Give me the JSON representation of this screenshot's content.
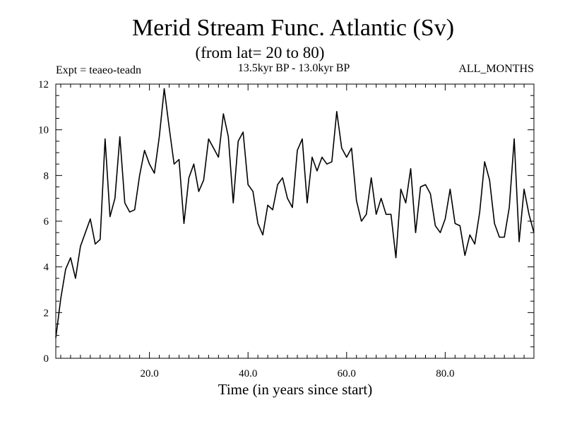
{
  "chart_data": {
    "type": "line",
    "title": "Merid Stream Func. Atlantic (Sv)",
    "subtitle": "(from lat= 20 to 80)",
    "experiment": "Expt = teaeo-teadn",
    "period": "13.5kyr BP - 13.0kyr BP",
    "months": "ALL_MONTHS",
    "xlabel": "Time (in years since start)",
    "ylabel": "",
    "xlim": [
      1,
      98
    ],
    "ylim": [
      0,
      12
    ],
    "xticks": [
      20,
      40,
      60,
      80
    ],
    "xtick_labels": [
      "20.0",
      "40.0",
      "60.0",
      "80.0"
    ],
    "yticks": [
      0,
      2,
      4,
      6,
      8,
      10,
      12
    ],
    "ytick_labels": [
      "0",
      "2",
      "4",
      "6",
      "8",
      "10",
      "12"
    ],
    "x": [
      1,
      2,
      3,
      4,
      5,
      6,
      7,
      8,
      9,
      10,
      11,
      12,
      13,
      14,
      15,
      16,
      17,
      18,
      19,
      20,
      21,
      22,
      23,
      24,
      25,
      26,
      27,
      28,
      29,
      30,
      31,
      32,
      33,
      34,
      35,
      36,
      37,
      38,
      39,
      40,
      41,
      42,
      43,
      44,
      45,
      46,
      47,
      48,
      49,
      50,
      51,
      52,
      53,
      54,
      55,
      56,
      57,
      58,
      59,
      60,
      61,
      62,
      63,
      64,
      65,
      66,
      67,
      68,
      69,
      70,
      71,
      72,
      73,
      74,
      75,
      76,
      77,
      78,
      79,
      80,
      81,
      82,
      83,
      84,
      85,
      86,
      87,
      88,
      89,
      90,
      91,
      92,
      93,
      94,
      95,
      96,
      97,
      98
    ],
    "values": [
      0.9,
      2.6,
      3.9,
      4.4,
      3.5,
      4.9,
      5.5,
      6.1,
      5.0,
      5.2,
      9.6,
      6.2,
      7.0,
      9.7,
      6.8,
      6.4,
      6.5,
      8.0,
      9.1,
      8.5,
      8.1,
      9.7,
      11.8,
      10.1,
      8.5,
      8.7,
      5.9,
      7.9,
      8.5,
      7.3,
      7.8,
      9.6,
      9.2,
      8.8,
      10.7,
      9.7,
      6.8,
      9.5,
      9.9,
      7.6,
      7.3,
      5.9,
      5.4,
      6.7,
      6.5,
      7.6,
      7.9,
      7.0,
      6.6,
      9.1,
      9.6,
      6.8,
      8.8,
      8.2,
      8.8,
      8.5,
      8.6,
      10.8,
      9.2,
      8.8,
      9.2,
      6.9,
      6.0,
      6.3,
      7.9,
      6.3,
      7.0,
      6.3,
      6.3,
      4.4,
      7.4,
      6.8,
      8.3,
      5.5,
      7.5,
      7.6,
      7.2,
      5.8,
      5.5,
      6.1,
      7.4,
      5.9,
      5.8,
      4.5,
      5.4,
      5.0,
      6.4,
      8.6,
      7.8,
      5.9,
      5.3,
      5.3,
      6.6,
      9.6,
      5.1,
      7.4,
      6.3,
      5.5
    ]
  }
}
